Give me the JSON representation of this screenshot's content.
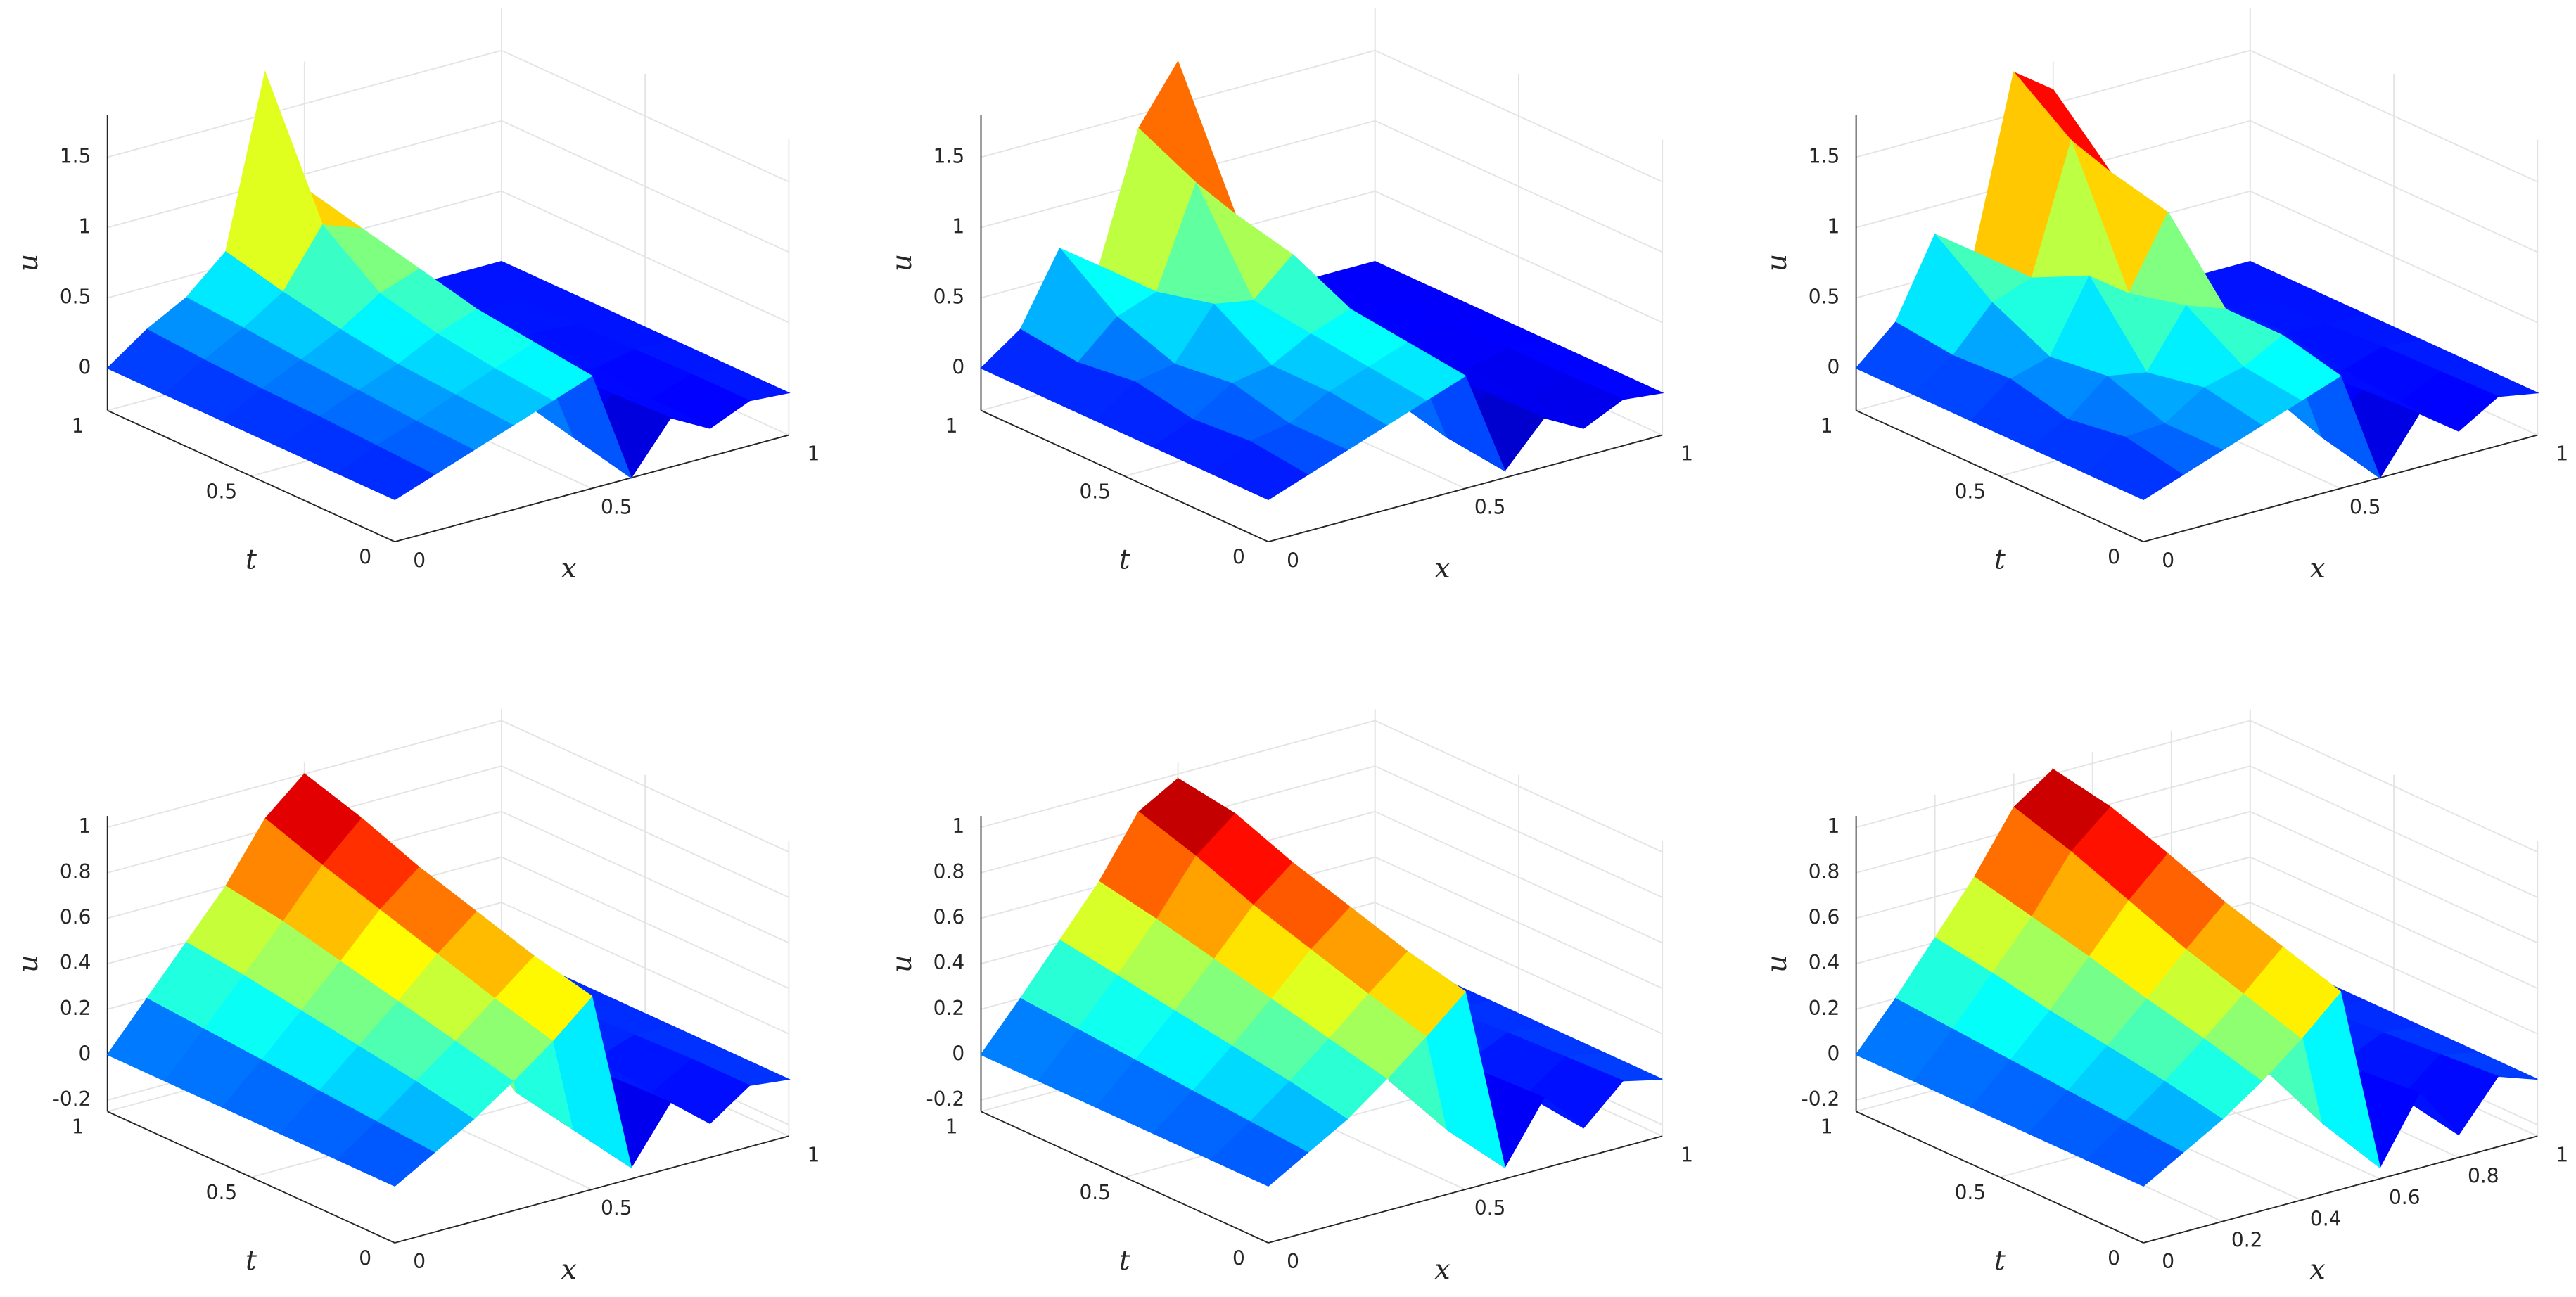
{
  "chart_data": [
    {
      "type": "surface",
      "xlabel": "x",
      "ylabel": "t",
      "zlabel": "u",
      "x": [
        0,
        0.1,
        0.2,
        0.3,
        0.4,
        0.5,
        0.6,
        0.7,
        0.8,
        0.9,
        1
      ],
      "t": [
        0,
        0.2,
        0.4,
        0.6,
        0.8,
        1
      ],
      "z": [
        [
          0,
          0.1,
          0.2,
          0.3,
          0.4,
          0.5,
          -0.3,
          0.05,
          -0.1,
          0.02,
          0
        ],
        [
          0,
          0.12,
          0.22,
          0.33,
          0.44,
          0.55,
          -0.2,
          0.03,
          -0.08,
          0.02,
          0
        ],
        [
          0,
          0.14,
          0.25,
          0.36,
          0.5,
          0.6,
          -0.1,
          0.02,
          -0.05,
          0.01,
          0
        ],
        [
          0,
          0.15,
          0.28,
          0.42,
          0.6,
          0.7,
          0.1,
          0,
          0.02,
          0,
          0
        ],
        [
          0,
          0.17,
          0.32,
          0.5,
          0.9,
          0.8,
          0.3,
          0,
          0,
          0,
          0
        ],
        [
          0,
          0.2,
          0.35,
          0.6,
          1.8,
          0.9,
          0.5,
          0.05,
          0,
          0,
          0
        ]
      ],
      "xlim": [
        0,
        1
      ],
      "ylim": [
        0,
        1
      ],
      "zlim": [
        -0.3,
        1.8
      ],
      "xticks": [
        0,
        0.5,
        1
      ],
      "yticks": [
        0,
        0.5,
        1
      ],
      "zticks": [
        0,
        0.5,
        1,
        1.5
      ],
      "grid": true,
      "colormap": "jet"
    },
    {
      "type": "surface",
      "xlabel": "x",
      "ylabel": "t",
      "zlabel": "u",
      "x": [
        0,
        0.1,
        0.2,
        0.3,
        0.4,
        0.5,
        0.6,
        0.7,
        0.8,
        0.9,
        1
      ],
      "t": [
        0,
        0.2,
        0.4,
        0.6,
        0.8,
        1
      ],
      "z": [
        [
          0,
          0.1,
          0.2,
          0.3,
          0.4,
          0.5,
          -0.25,
          0.05,
          -0.1,
          0.03,
          0
        ],
        [
          0,
          0.15,
          0.2,
          0.35,
          0.45,
          0.55,
          -0.2,
          0.04,
          -0.08,
          0.02,
          0
        ],
        [
          0,
          0.12,
          0.3,
          0.35,
          0.5,
          0.6,
          -0.1,
          0.02,
          -0.05,
          0.02,
          0
        ],
        [
          0,
          0.2,
          0.25,
          0.6,
          0.55,
          0.8,
          0.1,
          0,
          0.02,
          0,
          0
        ],
        [
          0,
          0.15,
          0.4,
          0.5,
          1.2,
          0.9,
          0.3,
          0,
          0,
          0,
          0
        ],
        [
          0,
          0.2,
          0.7,
          0.5,
          1.4,
          1.8,
          0.5,
          0.05,
          0,
          0,
          0
        ]
      ],
      "xlim": [
        0,
        1
      ],
      "ylim": [
        0,
        1
      ],
      "zlim": [
        -0.3,
        1.8
      ],
      "xticks": [
        0,
        0.5,
        1
      ],
      "yticks": [
        0,
        0.5,
        1
      ],
      "zticks": [
        0,
        0.5,
        1,
        1.5
      ],
      "grid": true,
      "colormap": "jet"
    },
    {
      "type": "surface",
      "xlabel": "x",
      "ylabel": "t",
      "zlabel": "u",
      "x": [
        0,
        0.1,
        0.2,
        0.3,
        0.4,
        0.5,
        0.6,
        0.7,
        0.8,
        0.9,
        1
      ],
      "t": [
        0,
        0.2,
        0.4,
        0.6,
        0.8,
        1
      ],
      "z": [
        [
          0,
          0.1,
          0.2,
          0.3,
          0.4,
          0.5,
          -0.3,
          0.08,
          -0.12,
          0.05,
          0
        ],
        [
          0,
          0.18,
          0.2,
          0.38,
          0.45,
          0.6,
          -0.2,
          0.06,
          -0.1,
          0.04,
          0
        ],
        [
          0,
          0.12,
          0.35,
          0.3,
          0.7,
          0.6,
          -0.05,
          0.04,
          -0.06,
          0.03,
          0
        ],
        [
          0,
          0.22,
          0.3,
          0.8,
          0.6,
          1.1,
          0.3,
          0.02,
          0.02,
          0,
          0
        ],
        [
          0,
          0.2,
          0.5,
          0.6,
          1.5,
          1.2,
          0.8,
          0.05,
          0,
          0,
          0
        ],
        [
          0,
          0.25,
          0.8,
          0.6,
          1.8,
          1.6,
          1.0,
          0.1,
          0,
          0,
          0
        ]
      ],
      "xlim": [
        0,
        1
      ],
      "ylim": [
        0,
        1
      ],
      "zlim": [
        -0.3,
        1.8
      ],
      "xticks": [
        0,
        0.5,
        1
      ],
      "yticks": [
        0,
        0.5,
        1
      ],
      "zticks": [
        0,
        0.5,
        1,
        1.5
      ],
      "grid": true,
      "colormap": "jet"
    },
    {
      "type": "surface",
      "xlabel": "x",
      "ylabel": "t",
      "zlabel": "u",
      "x": [
        0,
        0.1,
        0.2,
        0.3,
        0.4,
        0.5,
        0.6,
        0.7,
        0.8,
        0.9,
        1
      ],
      "t": [
        0,
        0.2,
        0.4,
        0.6,
        0.8,
        1
      ],
      "z": [
        [
          0,
          0.1,
          0.2,
          0.32,
          0.45,
          0.6,
          -0.2,
          0.04,
          -0.1,
          0.02,
          0
        ],
        [
          0,
          0.12,
          0.25,
          0.38,
          0.52,
          0.66,
          -0.15,
          0.03,
          -0.08,
          0.02,
          0
        ],
        [
          0,
          0.14,
          0.29,
          0.44,
          0.6,
          0.74,
          -0.1,
          0.02,
          -0.05,
          0.01,
          0
        ],
        [
          0,
          0.16,
          0.33,
          0.5,
          0.68,
          0.82,
          0.1,
          -0.02,
          0.02,
          0,
          0
        ],
        [
          0,
          0.18,
          0.37,
          0.56,
          0.76,
          0.92,
          0.3,
          0,
          0,
          0,
          0
        ],
        [
          0,
          0.2,
          0.4,
          0.6,
          0.85,
          1.0,
          0.5,
          0.05,
          0,
          0,
          0
        ]
      ],
      "xlim": [
        0,
        1
      ],
      "ylim": [
        0,
        1
      ],
      "zlim": [
        -0.25,
        1.05
      ],
      "xticks": [
        0,
        0.5,
        1
      ],
      "yticks": [
        0,
        0.5,
        1
      ],
      "zticks": [
        -0.2,
        0,
        0.2,
        0.4,
        0.6,
        0.8,
        1
      ],
      "grid": true,
      "colormap": "jet"
    },
    {
      "type": "surface",
      "xlabel": "x",
      "ylabel": "t",
      "zlabel": "u",
      "x": [
        0,
        0.1,
        0.2,
        0.3,
        0.4,
        0.5,
        0.6,
        0.7,
        0.8,
        0.9,
        1
      ],
      "t": [
        0,
        0.2,
        0.4,
        0.6,
        0.8,
        1
      ],
      "z": [
        [
          0,
          0.1,
          0.2,
          0.33,
          0.47,
          0.62,
          -0.2,
          0.06,
          -0.12,
          0.04,
          0
        ],
        [
          0,
          0.12,
          0.25,
          0.39,
          0.54,
          0.68,
          -0.15,
          0.05,
          -0.09,
          0.03,
          0
        ],
        [
          0,
          0.14,
          0.29,
          0.45,
          0.62,
          0.76,
          -0.05,
          0.03,
          -0.06,
          0.02,
          0
        ],
        [
          0,
          0.16,
          0.33,
          0.51,
          0.7,
          0.84,
          0.15,
          0,
          0.02,
          0,
          0
        ],
        [
          0,
          0.18,
          0.37,
          0.57,
          0.8,
          0.94,
          0.35,
          0,
          0,
          0,
          0
        ],
        [
          0,
          0.2,
          0.41,
          0.62,
          0.88,
          0.98,
          0.55,
          0.05,
          0,
          0,
          0
        ]
      ],
      "xlim": [
        0,
        1
      ],
      "ylim": [
        0,
        1
      ],
      "zlim": [
        -0.25,
        1.05
      ],
      "xticks": [
        0,
        0.5,
        1
      ],
      "yticks": [
        0,
        0.5,
        1
      ],
      "zticks": [
        -0.2,
        0,
        0.2,
        0.4,
        0.6,
        0.8,
        1
      ],
      "grid": true,
      "colormap": "jet"
    },
    {
      "type": "surface",
      "xlabel": "x",
      "ylabel": "t",
      "zlabel": "u",
      "x": [
        0,
        0.1,
        0.2,
        0.3,
        0.4,
        0.5,
        0.6,
        0.7,
        0.8,
        0.9,
        1
      ],
      "t": [
        0,
        0.2,
        0.4,
        0.6,
        0.8,
        1
      ],
      "z": [
        [
          0,
          0.1,
          0.2,
          0.32,
          0.46,
          0.62,
          -0.2,
          0.08,
          -0.15,
          0.06,
          0
        ],
        [
          0,
          0.12,
          0.25,
          0.39,
          0.54,
          0.7,
          -0.12,
          0.06,
          -0.1,
          0.04,
          0
        ],
        [
          0,
          0.14,
          0.29,
          0.45,
          0.62,
          0.78,
          0,
          0.04,
          -0.06,
          0.02,
          0
        ],
        [
          0,
          0.16,
          0.33,
          0.52,
          0.72,
          0.88,
          0.2,
          0.02,
          0.02,
          0,
          0
        ],
        [
          0,
          0.18,
          0.38,
          0.58,
          0.82,
          0.97,
          0.4,
          0,
          0,
          0,
          0
        ],
        [
          0,
          0.2,
          0.42,
          0.64,
          0.9,
          1.02,
          0.6,
          0.05,
          0,
          0,
          0
        ]
      ],
      "xlim": [
        0,
        1
      ],
      "ylim": [
        0,
        1
      ],
      "zlim": [
        -0.25,
        1.05
      ],
      "xticks": [
        0,
        0.2,
        0.4,
        0.6,
        0.8,
        1
      ],
      "yticks": [
        0,
        0.5,
        1
      ],
      "zticks": [
        -0.2,
        0,
        0.2,
        0.4,
        0.6,
        0.8,
        1
      ],
      "grid": true,
      "colormap": "jet"
    }
  ]
}
